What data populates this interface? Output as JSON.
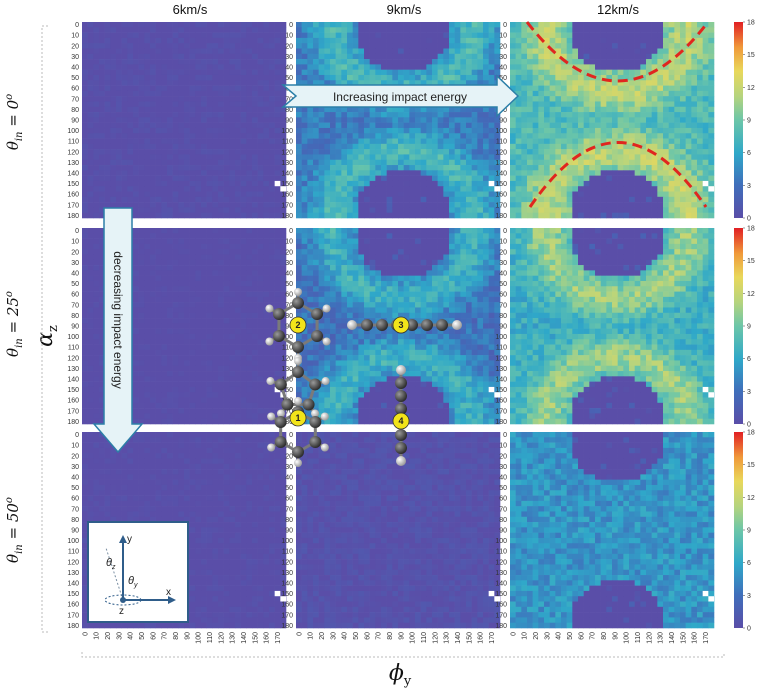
{
  "chart_data": {
    "type": "heatmap",
    "columns": [
      "6km/s",
      "9km/s",
      "12km/s"
    ],
    "rows": [
      "θin = 0o",
      "θin = 25o",
      "θin = 50o"
    ],
    "row_label_parts": [
      {
        "sym": "θ",
        "sub": "in",
        "eq": " = 0",
        "sup": "o"
      },
      {
        "sym": "θ",
        "sub": "in",
        "eq": " = 25",
        "sup": "o"
      },
      {
        "sym": "θ",
        "sub": "in",
        "eq": " = 50",
        "sup": "o"
      }
    ],
    "y_axis": {
      "label_sym": "α",
      "label_sub": "z",
      "ticks": [
        0,
        10,
        20,
        30,
        40,
        50,
        60,
        70,
        80,
        90,
        100,
        110,
        120,
        130,
        140,
        150,
        160,
        170,
        180
      ]
    },
    "x_axis": {
      "label_sym": "ϕ",
      "label_sub": "y",
      "ticks": [
        0,
        10,
        20,
        30,
        40,
        50,
        60,
        70,
        80,
        90,
        100,
        110,
        120,
        130,
        140,
        150,
        160,
        170
      ]
    },
    "colorbar": {
      "range": [
        0,
        18
      ],
      "ticks": [
        0,
        3,
        6,
        9,
        12,
        15,
        18
      ],
      "colormap": "viridis"
    },
    "panels": [
      {
        "row": 0,
        "col": 0,
        "pattern": "flat",
        "mean": 0.2
      },
      {
        "row": 0,
        "col": 1,
        "pattern": "ring",
        "mean": 5.5,
        "hole_value": 0
      },
      {
        "row": 0,
        "col": 2,
        "pattern": "ring",
        "mean": 9.5,
        "hole_value": 0
      },
      {
        "row": 1,
        "col": 0,
        "pattern": "flat",
        "mean": 0
      },
      {
        "row": 1,
        "col": 1,
        "pattern": "ring",
        "mean": 5,
        "hole_value": 0
      },
      {
        "row": 1,
        "col": 2,
        "pattern": "ring",
        "mean": 8.5,
        "hole_value": 0
      },
      {
        "row": 2,
        "col": 0,
        "pattern": "flat",
        "mean": 0.1
      },
      {
        "row": 2,
        "col": 1,
        "pattern": "flat",
        "mean": 0.6
      },
      {
        "row": 2,
        "col": 2,
        "pattern": "ring",
        "mean": 5,
        "hole_value": 0
      }
    ],
    "annotations": {
      "increasing": "Increasing impact energy",
      "decreasing": "decreasing impact energy",
      "molecule_labels": [
        "1",
        "2",
        "3",
        "4"
      ]
    },
    "inset_axes": {
      "y": "y",
      "x": "x",
      "z": "z",
      "theta_z_sym": "θ",
      "theta_z_sub": "z",
      "theta_y_sym": "θ",
      "theta_y_sub": "y"
    }
  }
}
